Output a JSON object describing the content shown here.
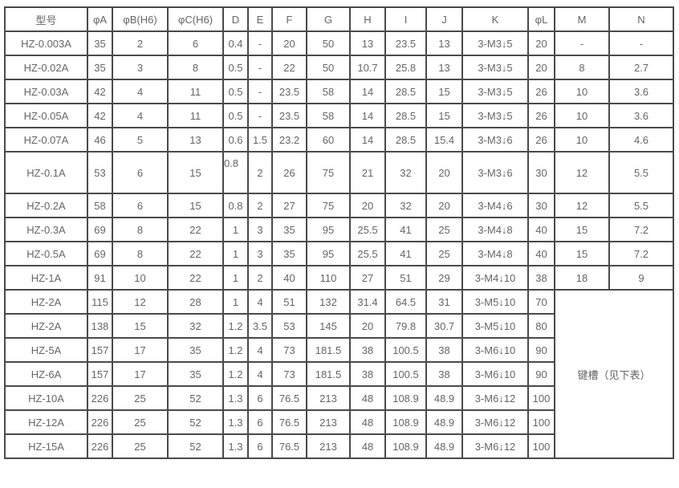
{
  "table": {
    "headers": [
      "型号",
      "φA",
      "φB(H6)",
      "φC(H6)",
      "D",
      "E",
      "F",
      "G",
      "H",
      "I",
      "J",
      "K",
      "φL",
      "M",
      "N"
    ],
    "rows": [
      [
        "HZ-0.003A",
        "35",
        "2",
        "6",
        "0.4",
        "-",
        "20",
        "50",
        "13",
        "23.5",
        "13",
        "3-M3↓5",
        "20",
        "-",
        "-"
      ],
      [
        "HZ-0.02A",
        "35",
        "3",
        "8",
        "0.5",
        "-",
        "22",
        "50",
        "10.7",
        "25.8",
        "13",
        "3-M3↓5",
        "20",
        "8",
        "2.7"
      ],
      [
        "HZ-0.03A",
        "42",
        "4",
        "11",
        "0.5",
        "-",
        "23.5",
        "58",
        "14",
        "28.5",
        "15",
        "3-M3↓5",
        "26",
        "10",
        "3.6"
      ],
      [
        "HZ-0.05A",
        "42",
        "4",
        "11",
        "0.5",
        "-",
        "23.5",
        "58",
        "14",
        "28.5",
        "15",
        "3-M3↓5",
        "26",
        "10",
        "3.6"
      ],
      [
        "HZ-0.07A",
        "46",
        "5",
        "13",
        "0.6",
        "1.5",
        "23.2",
        "60",
        "14",
        "28.5",
        "15.4",
        "3-M3↓6",
        "26",
        "10",
        "4.6"
      ],
      [
        "HZ-0.1A",
        "53",
        "6",
        "15",
        "0.8",
        "2",
        "26",
        "75",
        "21",
        "32",
        "20",
        "3-M3↓6",
        "30",
        "12",
        "5.5"
      ],
      [
        "HZ-0.2A",
        "58",
        "6",
        "15",
        "0.8",
        "2",
        "27",
        "75",
        "20",
        "32",
        "20",
        "3-M4↓6",
        "30",
        "12",
        "5.5"
      ],
      [
        "HZ-0.3A",
        "69",
        "8",
        "22",
        "1",
        "3",
        "35",
        "95",
        "25.5",
        "41",
        "25",
        "3-M4↓8",
        "40",
        "15",
        "7.2"
      ],
      [
        "HZ-0.5A",
        "69",
        "8",
        "22",
        "1",
        "3",
        "35",
        "95",
        "25.5",
        "41",
        "25",
        "3-M4↓8",
        "40",
        "15",
        "7.2"
      ],
      [
        "HZ-1A",
        "91",
        "10",
        "22",
        "1",
        "2",
        "40",
        "110",
        "27",
        "51",
        "29",
        "3-M4↓10",
        "38",
        "18",
        "9"
      ],
      [
        "HZ-2A",
        "115",
        "12",
        "28",
        "1",
        "4",
        "51",
        "132",
        "31.4",
        "64.5",
        "31",
        "3-M5↓10",
        "70"
      ],
      [
        "HZ-2A",
        "138",
        "15",
        "32",
        "1.2",
        "3.5",
        "53",
        "145",
        "20",
        "79.8",
        "30.7",
        "3-M5↓10",
        "80"
      ],
      [
        "HZ-5A",
        "157",
        "17",
        "35",
        "1.2",
        "4",
        "73",
        "181.5",
        "38",
        "100.5",
        "38",
        "3-M6↓10",
        "90"
      ],
      [
        "HZ-6A",
        "157",
        "17",
        "35",
        "1.2",
        "4",
        "73",
        "181.5",
        "38",
        "100.5",
        "38",
        "3-M6↓10",
        "90"
      ],
      [
        "HZ-10A",
        "226",
        "25",
        "52",
        "1.3",
        "6",
        "76.5",
        "213",
        "48",
        "108.9",
        "48.9",
        "3-M6↓12",
        "100"
      ],
      [
        "HZ-12A",
        "226",
        "25",
        "52",
        "1.3",
        "6",
        "76.5",
        "213",
        "48",
        "108.9",
        "48.9",
        "3-M6↓12",
        "100"
      ],
      [
        "HZ-15A",
        "226",
        "25",
        "52",
        "1.3",
        "6",
        "76.5",
        "213",
        "48",
        "108.9",
        "48.9",
        "3-M6↓12",
        "100"
      ]
    ],
    "merged_note": "键槽（见下表）"
  }
}
